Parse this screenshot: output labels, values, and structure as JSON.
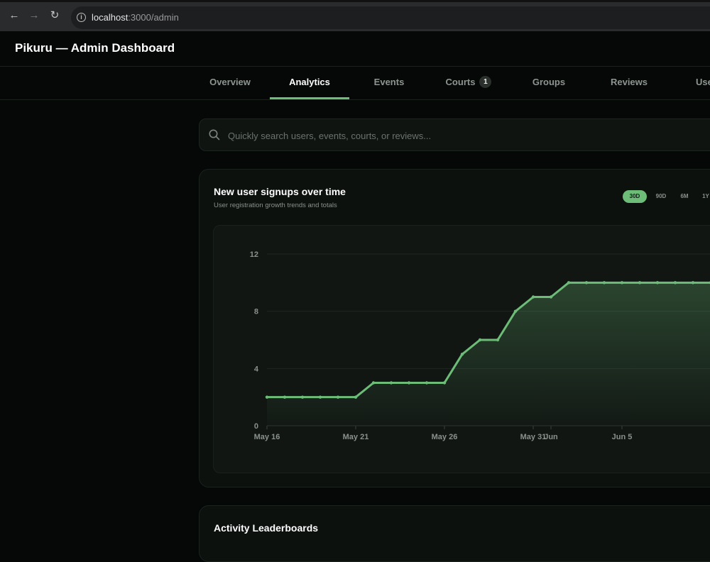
{
  "browser": {
    "url_host": "localhost",
    "url_path": ":3000/admin"
  },
  "app": {
    "title": "Pikuru — Admin Dashboard"
  },
  "tabs": [
    {
      "label": "Overview",
      "active": false
    },
    {
      "label": "Analytics",
      "active": true
    },
    {
      "label": "Events",
      "active": false
    },
    {
      "label": "Courts",
      "active": false,
      "badge": "1"
    },
    {
      "label": "Groups",
      "active": false
    },
    {
      "label": "Reviews",
      "active": false
    },
    {
      "label": "Use",
      "active": false
    }
  ],
  "search": {
    "placeholder": "Quickly search users, events, courts, or reviews..."
  },
  "signups_card": {
    "title": "New user signups over time",
    "subtitle": "User registration growth trends and totals",
    "ranges": [
      {
        "label": "30D",
        "active": true
      },
      {
        "label": "90D",
        "active": false
      },
      {
        "label": "6M",
        "active": false
      },
      {
        "label": "1Y",
        "active": false
      }
    ]
  },
  "chart_data": {
    "type": "area",
    "x": [
      "May 16",
      "May 17",
      "May 18",
      "May 19",
      "May 20",
      "May 21",
      "May 22",
      "May 23",
      "May 24",
      "May 25",
      "May 26",
      "May 27",
      "May 28",
      "May 29",
      "May 30",
      "May 31",
      "Jun 1",
      "Jun 2",
      "Jun 3",
      "Jun 4",
      "Jun 5",
      "Jun 6",
      "Jun 7",
      "Jun 8",
      "Jun 9",
      "Jun 10"
    ],
    "y": [
      2,
      2,
      2,
      2,
      2,
      2,
      3,
      3,
      3,
      3,
      3,
      5,
      6,
      6,
      8,
      9,
      9,
      10,
      10,
      10,
      10,
      10,
      10,
      10,
      10,
      10
    ],
    "x_tick_labels": [
      "May 16",
      "May 21",
      "May 26",
      "May 31",
      "Jun 5",
      "Jun"
    ],
    "y_tick_labels": [
      "0",
      "4",
      "8",
      "12"
    ],
    "ylim": [
      0,
      12
    ],
    "grid": true,
    "line_color": "#6dbd78"
  },
  "leaderboards_card": {
    "title": "Activity Leaderboards"
  }
}
